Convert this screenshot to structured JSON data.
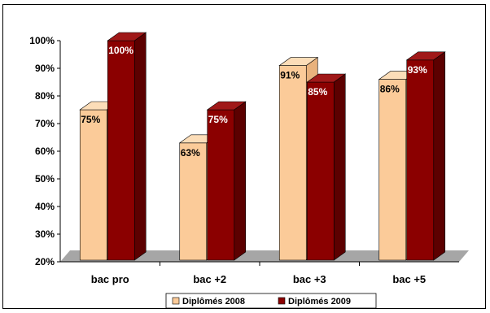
{
  "chart_data": {
    "type": "bar",
    "categories": [
      "bac pro",
      "bac +2",
      "bac +3",
      "bac +5"
    ],
    "series": [
      {
        "name": "Diplômés 2008",
        "values": [
          75,
          63,
          91,
          86
        ],
        "labels": [
          "75%",
          "63%",
          "91%",
          "86%"
        ],
        "color": "#FBCB99",
        "side": "#E9B27D",
        "top": "#FCDDB8"
      },
      {
        "name": "Diplômés 2009",
        "values": [
          100,
          75,
          85,
          93
        ],
        "labels": [
          "100%",
          "75%",
          "85%",
          "93%"
        ],
        "color": "#8B0000",
        "side": "#5C0000",
        "top": "#A01818"
      }
    ],
    "ylim": [
      20,
      100
    ],
    "yticks": [
      "20%",
      "30%",
      "40%",
      "50%",
      "60%",
      "70%",
      "80%",
      "90%",
      "100%"
    ],
    "ytick_values": [
      20,
      30,
      40,
      50,
      60,
      70,
      80,
      90,
      100
    ],
    "grid": false,
    "legend_position": "bottom",
    "floor_color": "#A6A6A6",
    "title": "",
    "xlabel": "",
    "ylabel": ""
  }
}
